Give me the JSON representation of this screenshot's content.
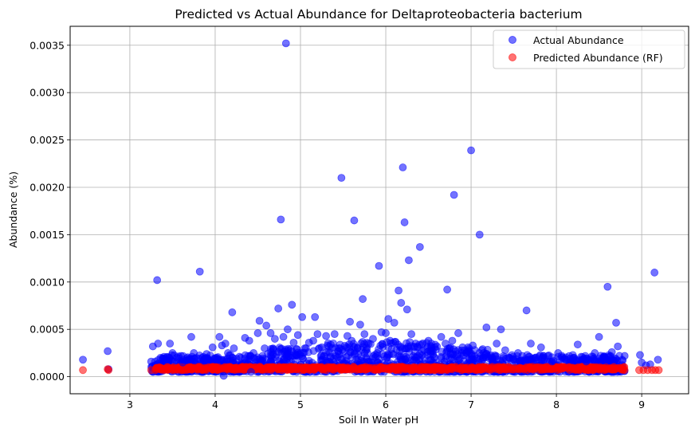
{
  "chart_data": {
    "type": "scatter",
    "title": "Predicted vs Actual Abundance for Deltaproteobacteria bacterium",
    "xlabel": "Soil In Water pH",
    "ylabel": "Abundance (%)",
    "xlim": [
      2.3,
      9.55
    ],
    "ylim": [
      -0.00018,
      0.0037
    ],
    "x_ticks": [
      3,
      4,
      5,
      6,
      7,
      8,
      9
    ],
    "x_tick_labels": [
      "3",
      "4",
      "5",
      "6",
      "7",
      "8",
      "9"
    ],
    "y_ticks": [
      0,
      0.0005,
      0.001,
      0.0015,
      0.002,
      0.0025,
      0.003,
      0.0035
    ],
    "y_tick_labels": [
      "0.0000",
      "0.0005",
      "0.0010",
      "0.0015",
      "0.0020",
      "0.0025",
      "0.0030",
      "0.0035"
    ],
    "grid": true,
    "legend_position": "top-right",
    "series": [
      {
        "name": "Actual Abundance",
        "color": "#0000ff",
        "alpha": 0.55,
        "points": [
          [
            2.45,
            0.00018
          ],
          [
            2.74,
            0.00027
          ],
          [
            2.75,
            8e-05
          ],
          [
            3.25,
            0.00016
          ],
          [
            3.27,
            0.00032
          ],
          [
            3.32,
            0.00102
          ],
          [
            3.33,
            0.00035
          ],
          [
            3.36,
            0.0002
          ],
          [
            3.4,
            0.00021
          ],
          [
            3.47,
            0.00035
          ],
          [
            3.5,
            0.00025
          ],
          [
            3.55,
            0.0002
          ],
          [
            3.6,
            0.00022
          ],
          [
            3.62,
            0.00015
          ],
          [
            3.7,
            0.00018
          ],
          [
            3.72,
            0.00042
          ],
          [
            3.75,
            0.00025
          ],
          [
            3.82,
            0.00111
          ],
          [
            3.85,
            0.0002
          ],
          [
            3.9,
            0.00024
          ],
          [
            3.97,
            0.00031
          ],
          [
            4.02,
            0.0002
          ],
          [
            4.05,
            0.00042
          ],
          [
            4.08,
            0.00033
          ],
          [
            4.1,
            1e-05
          ],
          [
            4.12,
            0.00035
          ],
          [
            4.15,
            0.00025
          ],
          [
            4.2,
            0.00068
          ],
          [
            4.22,
            0.0003
          ],
          [
            4.3,
            0.0002
          ],
          [
            4.35,
            0.00041
          ],
          [
            4.4,
            0.00038
          ],
          [
            4.42,
            5e-05
          ],
          [
            4.45,
            0.00025
          ],
          [
            4.5,
            0.00046
          ],
          [
            4.52,
            0.00059
          ],
          [
            4.58,
            0.0003
          ],
          [
            4.6,
            0.00054
          ],
          [
            4.65,
            0.00046
          ],
          [
            4.7,
            0.0004
          ],
          [
            4.74,
            0.00072
          ],
          [
            4.77,
            0.00166
          ],
          [
            4.8,
            0.00042
          ],
          [
            4.83,
            0.00352
          ],
          [
            4.85,
            0.0005
          ],
          [
            4.9,
            0.00076
          ],
          [
            4.92,
            0.00036
          ],
          [
            4.97,
            0.00044
          ],
          [
            5.0,
            0.00025
          ],
          [
            5.02,
            0.00063
          ],
          [
            5.05,
            0.0003
          ],
          [
            5.1,
            0.00036
          ],
          [
            5.15,
            0.00038
          ],
          [
            5.17,
            0.00063
          ],
          [
            5.2,
            0.00045
          ],
          [
            5.25,
            0.00031
          ],
          [
            5.3,
            0.00043
          ],
          [
            5.35,
            0.0002
          ],
          [
            5.4,
            0.00045
          ],
          [
            5.45,
            0.0003
          ],
          [
            5.48,
            0.0021
          ],
          [
            5.5,
            0.00026
          ],
          [
            5.55,
            0.00043
          ],
          [
            5.58,
            0.00058
          ],
          [
            5.6,
            0.00038
          ],
          [
            5.63,
            0.00165
          ],
          [
            5.67,
            0.0003
          ],
          [
            5.7,
            0.00055
          ],
          [
            5.73,
            0.00082
          ],
          [
            5.75,
            0.00045
          ],
          [
            5.8,
            0.00035
          ],
          [
            5.85,
            0.0004
          ],
          [
            5.9,
            0.00025
          ],
          [
            5.92,
            0.00117
          ],
          [
            5.95,
            0.00047
          ],
          [
            6.0,
            0.00046
          ],
          [
            6.03,
            0.00061
          ],
          [
            6.05,
            0.00038
          ],
          [
            6.1,
            0.00057
          ],
          [
            6.15,
            0.00091
          ],
          [
            6.18,
            0.00078
          ],
          [
            6.2,
            0.00221
          ],
          [
            6.22,
            0.00163
          ],
          [
            6.25,
            0.00071
          ],
          [
            6.27,
            0.00123
          ],
          [
            6.3,
            0.00045
          ],
          [
            6.35,
            0.00035
          ],
          [
            6.4,
            0.00137
          ],
          [
            6.45,
            0.00028
          ],
          [
            6.5,
            0.00038
          ],
          [
            6.55,
            0.00027
          ],
          [
            6.6,
            0.00032
          ],
          [
            6.65,
            0.00042
          ],
          [
            6.7,
            0.00035
          ],
          [
            6.72,
            0.00092
          ],
          [
            6.78,
            0.00038
          ],
          [
            6.8,
            0.00192
          ],
          [
            6.85,
            0.00046
          ],
          [
            6.9,
            0.00031
          ],
          [
            6.95,
            0.00025
          ],
          [
            7.0,
            0.00239
          ],
          [
            7.02,
            0.00033
          ],
          [
            7.1,
            0.0015
          ],
          [
            7.15,
            0.00025
          ],
          [
            7.18,
            0.00052
          ],
          [
            7.25,
            0.0002
          ],
          [
            7.3,
            0.00035
          ],
          [
            7.35,
            0.0005
          ],
          [
            7.4,
            0.00028
          ],
          [
            7.45,
            0.0002
          ],
          [
            7.5,
            0.00018
          ],
          [
            7.55,
            0.00025
          ],
          [
            7.6,
            0.00022
          ],
          [
            7.65,
            0.0007
          ],
          [
            7.7,
            0.00035
          ],
          [
            7.75,
            0.0002
          ],
          [
            7.82,
            0.00031
          ],
          [
            7.9,
            0.00022
          ],
          [
            7.95,
            0.00016
          ],
          [
            8.02,
            0.00025
          ],
          [
            8.1,
            0.00019
          ],
          [
            8.2,
            0.0002
          ],
          [
            8.25,
            0.00034
          ],
          [
            8.35,
            0.00016
          ],
          [
            8.45,
            0.00025
          ],
          [
            8.5,
            0.00042
          ],
          [
            8.55,
            0.0002
          ],
          [
            8.6,
            0.00095
          ],
          [
            8.65,
            0.00026
          ],
          [
            8.7,
            0.00057
          ],
          [
            8.72,
            0.00032
          ],
          [
            8.8,
            0.00022
          ],
          [
            8.98,
            0.00023
          ],
          [
            9.0,
            0.00015
          ],
          [
            9.05,
            0.00012
          ],
          [
            9.1,
            0.00013
          ],
          [
            9.15,
            0.0011
          ],
          [
            9.19,
            0.00018
          ]
        ]
      },
      {
        "name": "Predicted Abundance (RF)",
        "color": "#ff0000",
        "alpha": 0.55,
        "points": [
          [
            2.45,
            7e-05
          ],
          [
            2.74,
            8e-05
          ],
          [
            2.75,
            7e-05
          ],
          [
            3.25,
            7e-05
          ],
          [
            3.3,
            7e-05
          ],
          [
            3.35,
            8e-05
          ],
          [
            3.4,
            7e-05
          ],
          [
            3.45,
            8e-05
          ],
          [
            3.5,
            7e-05
          ],
          [
            3.55,
            8e-05
          ],
          [
            3.6,
            7e-05
          ],
          [
            8.8,
            7e-05
          ],
          [
            8.97,
            7e-05
          ],
          [
            9.02,
            7e-05
          ],
          [
            9.07,
            7e-05
          ],
          [
            9.12,
            7e-05
          ],
          [
            9.16,
            7e-05
          ],
          [
            9.2,
            7e-05
          ]
        ]
      }
    ]
  }
}
